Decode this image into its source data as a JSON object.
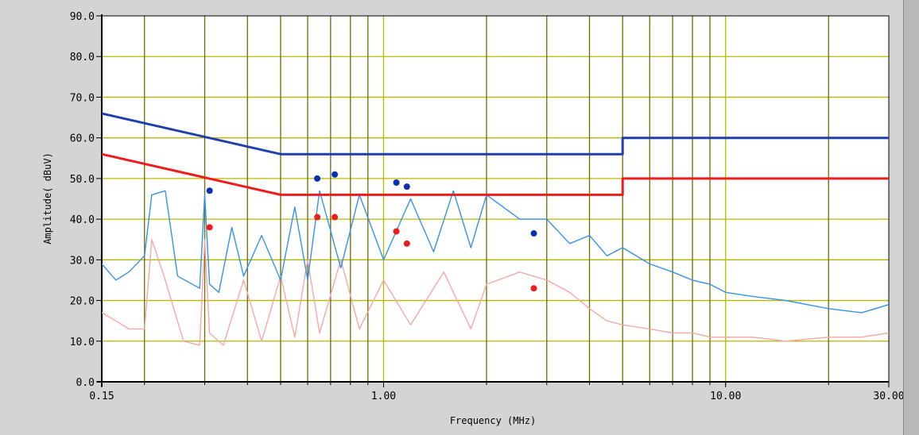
{
  "chart_data": {
    "type": "line",
    "title": "",
    "xlabel": "Frequency (MHz)",
    "ylabel": "Amplitude( dBuV)",
    "xscale": "log",
    "xlim": [
      0.15,
      30
    ],
    "ylim": [
      0,
      90
    ],
    "grid": true,
    "legend": "none",
    "x_ticks": [
      {
        "value": 0.15,
        "label": "0.15"
      },
      {
        "value": 1.0,
        "label": "1.00"
      },
      {
        "value": 10.0,
        "label": "10.00"
      },
      {
        "value": 30.0,
        "label": "30.00"
      }
    ],
    "x_gridlines": [
      0.2,
      0.3,
      0.4,
      0.5,
      0.6,
      0.7,
      0.8,
      0.9,
      1,
      2,
      3,
      4,
      5,
      6,
      7,
      8,
      9,
      10,
      20
    ],
    "y_ticks": [
      {
        "value": 0,
        "label": "0.0"
      },
      {
        "value": 10,
        "label": "10.0"
      },
      {
        "value": 20,
        "label": "20.0"
      },
      {
        "value": 30,
        "label": "30.0"
      },
      {
        "value": 40,
        "label": "40.0"
      },
      {
        "value": 50,
        "label": "50.0"
      },
      {
        "value": 60,
        "label": "60.0"
      },
      {
        "value": 70,
        "label": "70.0"
      },
      {
        "value": 80,
        "label": "80.0"
      },
      {
        "value": 90,
        "label": "90.0"
      }
    ],
    "colors": {
      "plot_bg": "#ffffff",
      "grid_minor": "#6b6b00",
      "grid_major": "#b8b800",
      "limit_qp": "#1f3fb0",
      "limit_avg": "#ee1c1c",
      "trace_peak": "#3592e8",
      "trace_avg": "#f4a8a8",
      "marker_qp": "#0a2fb0",
      "marker_avg": "#ee1c1c"
    },
    "series": [
      {
        "kind": "limit",
        "color_key": "limit_qp",
        "x": [
          0.15,
          0.5,
          5,
          5,
          30
        ],
        "y": [
          66,
          56,
          56,
          60,
          60
        ]
      },
      {
        "kind": "limit",
        "color_key": "limit_avg",
        "x": [
          0.15,
          0.5,
          5,
          5,
          30
        ],
        "y": [
          56,
          46,
          46,
          50,
          50
        ]
      },
      {
        "kind": "trace",
        "color_key": "trace_peak",
        "x": [
          0.15,
          0.165,
          0.18,
          0.2,
          0.21,
          0.23,
          0.25,
          0.29,
          0.3,
          0.31,
          0.33,
          0.36,
          0.39,
          0.44,
          0.5,
          0.55,
          0.6,
          0.65,
          0.75,
          0.85,
          1,
          1.2,
          1.4,
          1.6,
          1.8,
          2,
          2.5,
          3,
          3.5,
          4,
          4.5,
          5,
          6,
          7,
          8,
          9,
          10,
          12,
          15,
          20,
          25,
          30
        ],
        "y": [
          29,
          25,
          27,
          31,
          46,
          47,
          26,
          23,
          46,
          24,
          22,
          38,
          26,
          36,
          25,
          43,
          25,
          47,
          28,
          46,
          30,
          45,
          32,
          47,
          33,
          46,
          40,
          40,
          34,
          36,
          31,
          33,
          29,
          27,
          25,
          24,
          22,
          21,
          20,
          18,
          17,
          19
        ]
      },
      {
        "kind": "trace",
        "color_key": "trace_avg",
        "x": [
          0.15,
          0.165,
          0.18,
          0.2,
          0.21,
          0.23,
          0.26,
          0.29,
          0.3,
          0.31,
          0.34,
          0.39,
          0.44,
          0.5,
          0.55,
          0.6,
          0.65,
          0.75,
          0.85,
          1,
          1.2,
          1.5,
          1.8,
          2,
          2.5,
          3,
          3.5,
          4,
          4.5,
          5,
          6,
          7,
          8,
          9,
          10,
          12,
          15,
          20,
          25,
          30
        ],
        "y": [
          17,
          15,
          13,
          13,
          35,
          25,
          10,
          9,
          35,
          12,
          9,
          25,
          10,
          26,
          11,
          30,
          12,
          30,
          13,
          25,
          14,
          27,
          13,
          24,
          27,
          25,
          22,
          18,
          15,
          14,
          13,
          12,
          12,
          11,
          11,
          11,
          10,
          11,
          11,
          12
        ]
      }
    ],
    "markers_qp": [
      {
        "x": 0.31,
        "y": 47
      },
      {
        "x": 0.64,
        "y": 50
      },
      {
        "x": 0.72,
        "y": 51
      },
      {
        "x": 1.09,
        "y": 49
      },
      {
        "x": 1.17,
        "y": 48
      },
      {
        "x": 2.75,
        "y": 36.5
      }
    ],
    "markers_avg": [
      {
        "x": 0.31,
        "y": 38
      },
      {
        "x": 0.64,
        "y": 40.5
      },
      {
        "x": 0.72,
        "y": 40.5
      },
      {
        "x": 1.09,
        "y": 37
      },
      {
        "x": 1.17,
        "y": 34
      },
      {
        "x": 2.75,
        "y": 23
      }
    ]
  }
}
